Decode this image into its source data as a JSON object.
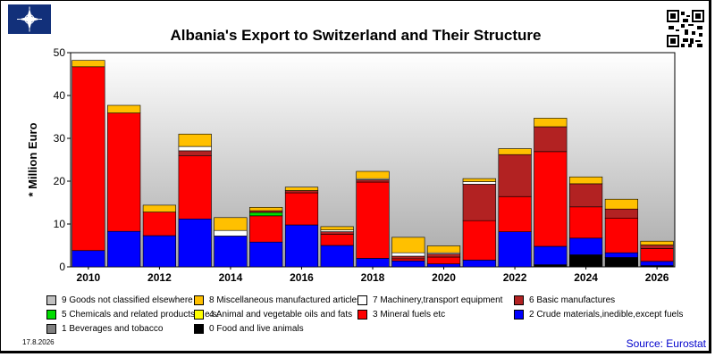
{
  "title": "Albania's Export to Switzerland and Their Structure",
  "footer": {
    "date": "17.8.2026",
    "source": "Source: Eurostat"
  },
  "icons": {
    "logo": "star-emblem-icon",
    "qr": "qr-code-icon"
  },
  "chart_data": {
    "type": "bar",
    "stacked": true,
    "title": "Albania's Export to Switzerland and Their Structure",
    "ylabel": "* Million Euro",
    "ylim": [
      0,
      50
    ],
    "yticks": [
      0,
      10,
      20,
      30,
      40,
      50
    ],
    "xticks": [
      "2010",
      "2012",
      "2014",
      "2016",
      "2018",
      "2020",
      "2022",
      "2024",
      "2026"
    ],
    "categories": [
      "2010",
      "2011",
      "2012",
      "2013",
      "2014",
      "2015",
      "2016",
      "2017",
      "2018",
      "2019",
      "2020",
      "2021",
      "2022",
      "2023",
      "2024",
      "2025",
      "2026"
    ],
    "grid": false,
    "legend_position": "bottom",
    "series": [
      {
        "name": "0 Food and live animals",
        "color": "#000000",
        "values": [
          0,
          0,
          0,
          0,
          0,
          0,
          0,
          0,
          0,
          0,
          0,
          0,
          0,
          0.5,
          2.8,
          2.2,
          0.3
        ]
      },
      {
        "name": "1 Beverages and tobacco",
        "color": "#808080",
        "values": [
          0,
          0,
          0,
          0,
          0,
          0,
          0,
          0,
          0,
          0,
          0,
          0,
          0,
          0,
          0,
          0,
          0
        ]
      },
      {
        "name": "2 Crude materials,inedible,except fuels",
        "color": "#0000ff",
        "values": [
          3.8,
          8.3,
          7.3,
          11.2,
          7.2,
          5.8,
          9.8,
          5.0,
          2.0,
          1.4,
          0.7,
          1.6,
          8.2,
          4.3,
          3.9,
          1.1,
          1.0
        ]
      },
      {
        "name": "3 Mineral fuels etc",
        "color": "#ff0000",
        "values": [
          42.9,
          27.6,
          5.5,
          14.7,
          0,
          6.1,
          7.5,
          2.6,
          17.8,
          0.5,
          1.6,
          9.2,
          8.2,
          22.1,
          7.3,
          8.1,
          3.0
        ]
      },
      {
        "name": "5 Chemicals and related products,n.e.s.",
        "color": "#00dd00",
        "values": [
          0,
          0,
          0,
          0,
          0,
          0.8,
          0,
          0,
          0,
          0,
          0,
          0,
          0,
          0,
          0,
          0,
          0
        ]
      },
      {
        "name": "6 Basic manufactures",
        "color": "#b22222",
        "values": [
          0,
          0,
          0,
          1.2,
          0,
          0.4,
          0.5,
          0.6,
          0.5,
          0.6,
          0.7,
          8.5,
          9.8,
          5.8,
          5.4,
          2.1,
          0.8
        ]
      },
      {
        "name": "7 Machinery,transport equipment",
        "color": "#ffffff",
        "values": [
          0,
          0,
          0,
          1.0,
          1.3,
          0,
          0,
          0.4,
          0.3,
          0.8,
          0.3,
          0.6,
          0,
          0,
          0,
          0,
          0
        ]
      },
      {
        "name": "4 Animal and vegetable oils and fats",
        "color": "#ffff00",
        "values": [
          0,
          0,
          0,
          0,
          0,
          0,
          0,
          0,
          0,
          0,
          0,
          0,
          0,
          0,
          0,
          0,
          0
        ]
      },
      {
        "name": "8 Miscellaneous manufactured articles",
        "color": "#ffc000",
        "values": [
          1.5,
          1.8,
          1.6,
          2.9,
          3.0,
          0.8,
          0.8,
          0.8,
          1.7,
          3.6,
          1.6,
          0.7,
          1.4,
          2.0,
          1.6,
          2.3,
          0.9
        ]
      },
      {
        "name": "9 Goods not classified elsewhere",
        "color": "#c0c0c0",
        "values": [
          0,
          0,
          0,
          0,
          0,
          0,
          0,
          0,
          0,
          0,
          0,
          0,
          0,
          0,
          0,
          0,
          0
        ]
      }
    ],
    "legend_order": [
      "9 Goods not classified elsewhere",
      "8 Miscellaneous manufactured articles",
      "7 Machinery,transport equipment",
      "6 Basic manufactures",
      "5 Chemicals and related products,n.e.s.",
      "4 Animal and vegetable oils and fats",
      "3 Mineral fuels etc",
      "2 Crude materials,inedible,except fuels",
      "1 Beverages and tobacco",
      "0 Food and live animals"
    ]
  }
}
